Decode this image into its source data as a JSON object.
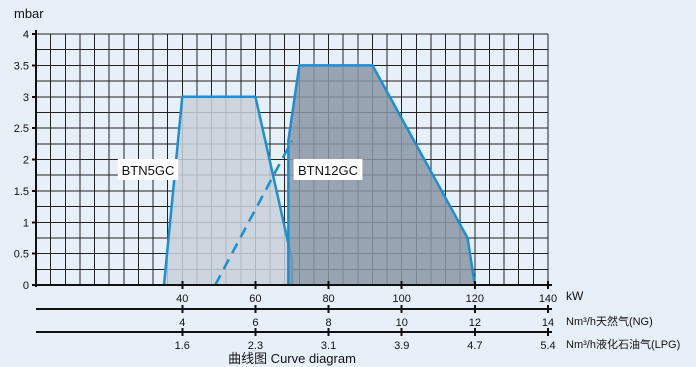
{
  "chart_data": {
    "type": "area",
    "title": "曲线图 Curve diagram",
    "ylabel": "mbar",
    "xlabel": "kW",
    "xlim": [
      0,
      140
    ],
    "ylim": [
      0,
      4
    ],
    "y_ticks": [
      "0",
      "0.5",
      "1",
      "1.5",
      "2",
      "2.5",
      "3",
      "3.5",
      "4"
    ],
    "x_ticks": [
      "40",
      "60",
      "80",
      "100",
      "120",
      "140"
    ],
    "secondary_axes": [
      {
        "label": "Nm³/h天然气(NG)",
        "ticks": [
          "4",
          "6",
          "8",
          "10",
          "12",
          "14"
        ]
      },
      {
        "label": "Nm³/h液化石油气(LPG)",
        "ticks": [
          "1.6",
          "2.3",
          "3.1",
          "3.9",
          "4.7",
          "5.4"
        ]
      }
    ],
    "grid": true,
    "series": [
      {
        "name": "BTN5GC",
        "fill": "#c8d1db",
        "stroke": "#1a8fd6",
        "points": [
          [
            35,
            0
          ],
          [
            40,
            3
          ],
          [
            60,
            3
          ],
          [
            70,
            0.4
          ],
          [
            70,
            0
          ]
        ]
      },
      {
        "name": "BTN12GC",
        "fill": "#8a97a6",
        "stroke": "#1a8fd6",
        "points": [
          [
            69,
            0
          ],
          [
            69,
            2.3
          ],
          [
            72,
            3.5
          ],
          [
            92,
            3.5
          ],
          [
            118,
            0.75
          ],
          [
            120,
            0
          ]
        ]
      }
    ],
    "dashed_line": {
      "stroke": "#1a8fd6",
      "points": [
        [
          49,
          0
        ],
        [
          70,
          2.3
        ]
      ]
    }
  }
}
